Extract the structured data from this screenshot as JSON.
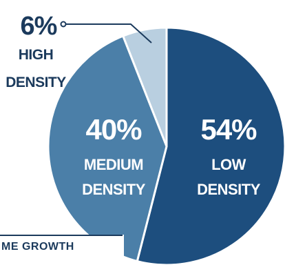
{
  "chart_data": {
    "type": "pie",
    "slices": [
      {
        "label_line1": "LOW",
        "label_line2": "DENSITY",
        "value": 54,
        "value_text": "54%",
        "color": "#1d4e7e",
        "text_color": "#ffffff"
      },
      {
        "label_line1": "MEDIUM",
        "label_line2": "DENSITY",
        "value": 40,
        "value_text": "40%",
        "color": "#4b7fa8",
        "text_color": "#ffffff"
      },
      {
        "label_line1": "HIGH",
        "label_line2": "DENSITY",
        "value": 6,
        "value_text": "6%",
        "color": "#b9cfe0",
        "text_color": "#1b3a5c"
      }
    ],
    "footer_text": "ME GROWTH"
  }
}
